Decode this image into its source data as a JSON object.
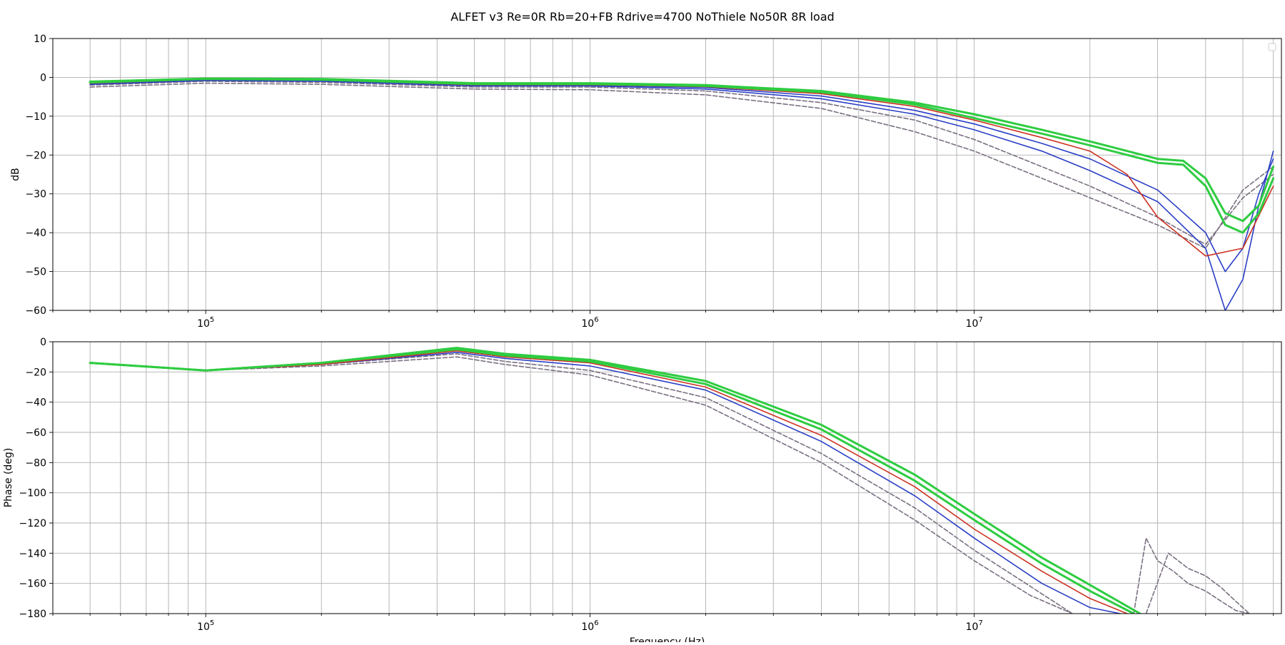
{
  "figure": {
    "title": "ALFET v3 Re=0R Rb=20+FB Rdrive=4700 NoThiele No50R 8R load"
  },
  "colors": {
    "dashed_group": "#7a6f80",
    "blue_group": "#2a3fc6",
    "red_group": "#cc3322",
    "green_group": "#2ecc40"
  },
  "chart_data": [
    {
      "type": "line",
      "panel": "magnitude",
      "title": "",
      "xlabel": "",
      "ylabel": "dB",
      "x_scale": "log",
      "xlim": [
        40000,
        63000000
      ],
      "ylim": [
        -60,
        10
      ],
      "x_ticks": [
        {
          "value": 100000,
          "label": "10^5"
        },
        {
          "value": 1000000,
          "label": "10^6"
        },
        {
          "value": 10000000,
          "label": "10^7"
        }
      ],
      "y_ticks": [
        10,
        0,
        -10,
        -20,
        -30,
        -40,
        -50,
        -60
      ],
      "y_tick_labels": [
        "10",
        "0",
        "−10",
        "−20",
        "−30",
        "−40",
        "−50",
        "−60"
      ],
      "grid": true,
      "legend": "top-right (empty)",
      "series": [
        {
          "group": "dashed",
          "style": "dashed",
          "x": [
            50000,
            100000,
            200000,
            500000,
            1000000,
            2000000,
            4000000,
            7000000,
            10000000,
            15000000,
            20000000,
            30000000,
            40000000,
            50000000,
            60000000
          ],
          "y": [
            -2.5,
            -1.5,
            -1.8,
            -3,
            -3.2,
            -4.5,
            -8,
            -14,
            -19,
            -26,
            -31,
            -38,
            -44,
            -29,
            -23
          ]
        },
        {
          "group": "dashed",
          "style": "dashed",
          "x": [
            50000,
            100000,
            200000,
            500000,
            1000000,
            2000000,
            4000000,
            7000000,
            10000000,
            15000000,
            20000000,
            30000000,
            40000000,
            50000000,
            60000000
          ],
          "y": [
            -2,
            -1,
            -1.3,
            -2.5,
            -2.5,
            -3.5,
            -6.5,
            -11,
            -16,
            -23,
            -28,
            -36,
            -43,
            -31,
            -25
          ]
        },
        {
          "group": "blue",
          "style": "solid",
          "x": [
            50000,
            100000,
            200000,
            500000,
            1000000,
            2000000,
            4000000,
            7000000,
            10000000,
            15000000,
            20000000,
            30000000,
            40000000,
            45000000,
            50000000,
            55000000,
            60000000
          ],
          "y": [
            -1.8,
            -0.8,
            -1,
            -2.2,
            -2.2,
            -3,
            -5.5,
            -9.5,
            -13.5,
            -19,
            -24,
            -32,
            -44,
            -60,
            -52,
            -33,
            -19
          ]
        },
        {
          "group": "blue",
          "style": "solid",
          "x": [
            50000,
            100000,
            200000,
            500000,
            1000000,
            2000000,
            4000000,
            7000000,
            10000000,
            15000000,
            20000000,
            30000000,
            40000000,
            45000000,
            50000000,
            55000000,
            60000000
          ],
          "y": [
            -1.6,
            -0.6,
            -0.8,
            -2,
            -2,
            -2.6,
            -4.8,
            -8.5,
            -12,
            -17,
            -21,
            -29,
            -40,
            -50,
            -44,
            -30,
            -21
          ]
        },
        {
          "group": "red",
          "style": "solid",
          "x": [
            50000,
            100000,
            200000,
            500000,
            1000000,
            2000000,
            4000000,
            7000000,
            10000000,
            15000000,
            20000000,
            25000000,
            30000000,
            40000000,
            50000000,
            60000000
          ],
          "y": [
            -1.5,
            -0.5,
            -0.7,
            -1.9,
            -1.9,
            -2.4,
            -4.2,
            -7.5,
            -11,
            -15.5,
            -19,
            -25,
            -36,
            -46,
            -44,
            -28
          ]
        },
        {
          "group": "green",
          "style": "solid",
          "x": [
            50000,
            100000,
            200000,
            500000,
            1000000,
            2000000,
            4000000,
            7000000,
            10000000,
            15000000,
            20000000,
            30000000,
            35000000,
            40000000,
            45000000,
            50000000,
            55000000,
            60000000
          ],
          "y": [
            -1.3,
            -0.4,
            -0.6,
            -1.7,
            -1.7,
            -2.2,
            -3.8,
            -7,
            -10.5,
            -14.5,
            -17.5,
            -22,
            -22.5,
            -28,
            -38,
            -40,
            -35,
            -26
          ]
        },
        {
          "group": "green",
          "style": "solid",
          "x": [
            50000,
            100000,
            200000,
            500000,
            1000000,
            2000000,
            4000000,
            7000000,
            10000000,
            15000000,
            20000000,
            30000000,
            35000000,
            40000000,
            45000000,
            50000000,
            55000000,
            60000000
          ],
          "y": [
            -1.1,
            -0.3,
            -0.4,
            -1.5,
            -1.5,
            -2,
            -3.5,
            -6.5,
            -9.5,
            -13.5,
            -16.5,
            -21,
            -21.5,
            -26,
            -35,
            -37,
            -33,
            -23
          ]
        }
      ]
    },
    {
      "type": "line",
      "panel": "phase",
      "title": "",
      "xlabel": "Frequency (Hz)",
      "ylabel": "Phase (deg)",
      "x_scale": "log",
      "xlim": [
        40000,
        63000000
      ],
      "ylim": [
        -180,
        0
      ],
      "x_ticks": [
        {
          "value": 100000,
          "label": "10^5"
        },
        {
          "value": 1000000,
          "label": "10^6"
        },
        {
          "value": 10000000,
          "label": "10^7"
        }
      ],
      "y_ticks": [
        0,
        -20,
        -40,
        -60,
        -80,
        -100,
        -120,
        -140,
        -160,
        -180
      ],
      "y_tick_labels": [
        "0",
        "−20",
        "−40",
        "−60",
        "−80",
        "−100",
        "−120",
        "−140",
        "−160",
        "−180"
      ],
      "grid": true,
      "series": [
        {
          "group": "dashed",
          "style": "dashed",
          "x": [
            50000,
            100000,
            200000,
            450000,
            600000,
            1000000,
            2000000,
            4000000,
            7000000,
            10000000,
            14000000,
            18000000
          ],
          "y": [
            -14,
            -19,
            -16,
            -10,
            -15,
            -22,
            -42,
            -80,
            -118,
            -145,
            -168,
            -180
          ]
        },
        {
          "group": "dashed",
          "style": "dashed",
          "x": [
            50000,
            100000,
            200000,
            450000,
            600000,
            1000000,
            2000000,
            4000000,
            7000000,
            10000000,
            14000000,
            18000000
          ],
          "y": [
            -14,
            -19,
            -15,
            -8,
            -13,
            -19,
            -37,
            -74,
            -110,
            -138,
            -162,
            -180
          ]
        },
        {
          "group": "dashed",
          "style": "dashed",
          "x": [
            26000000,
            28000000,
            30000000,
            33000000,
            36000000,
            40000000,
            44000000,
            48000000,
            52000000
          ],
          "y": [
            -180,
            -130,
            -145,
            -152,
            -160,
            -165,
            -172,
            -178,
            -180
          ]
        },
        {
          "group": "dashed",
          "style": "dashed",
          "x": [
            28000000,
            32000000,
            36000000,
            40000000,
            44000000,
            48000000,
            52000000
          ],
          "y": [
            -180,
            -140,
            -150,
            -155,
            -163,
            -172,
            -180
          ]
        },
        {
          "group": "blue",
          "style": "solid",
          "x": [
            50000,
            100000,
            200000,
            450000,
            600000,
            1000000,
            2000000,
            4000000,
            7000000,
            10000000,
            15000000,
            20000000,
            24000000
          ],
          "y": [
            -14,
            -19,
            -15,
            -7,
            -11,
            -16,
            -32,
            -66,
            -102,
            -130,
            -160,
            -176,
            -180
          ]
        },
        {
          "group": "red",
          "style": "solid",
          "x": [
            50000,
            100000,
            200000,
            450000,
            600000,
            1000000,
            2000000,
            4000000,
            7000000,
            10000000,
            15000000,
            20000000,
            25000000
          ],
          "y": [
            -14,
            -19,
            -15,
            -6,
            -10,
            -14,
            -30,
            -62,
            -96,
            -124,
            -152,
            -170,
            -180
          ]
        },
        {
          "group": "green",
          "style": "solid",
          "x": [
            50000,
            100000,
            200000,
            450000,
            600000,
            1000000,
            2000000,
            4000000,
            7000000,
            10000000,
            15000000,
            20000000,
            26000000
          ],
          "y": [
            -14,
            -19,
            -14,
            -5,
            -9,
            -13,
            -28,
            -58,
            -92,
            -118,
            -147,
            -165,
            -180
          ]
        },
        {
          "group": "green",
          "style": "solid",
          "x": [
            50000,
            100000,
            200000,
            450000,
            600000,
            1000000,
            2000000,
            4000000,
            7000000,
            10000000,
            15000000,
            20000000,
            27000000
          ],
          "y": [
            -14,
            -19,
            -14,
            -4,
            -8,
            -12,
            -26,
            -55,
            -88,
            -114,
            -143,
            -161,
            -180
          ]
        }
      ]
    }
  ]
}
